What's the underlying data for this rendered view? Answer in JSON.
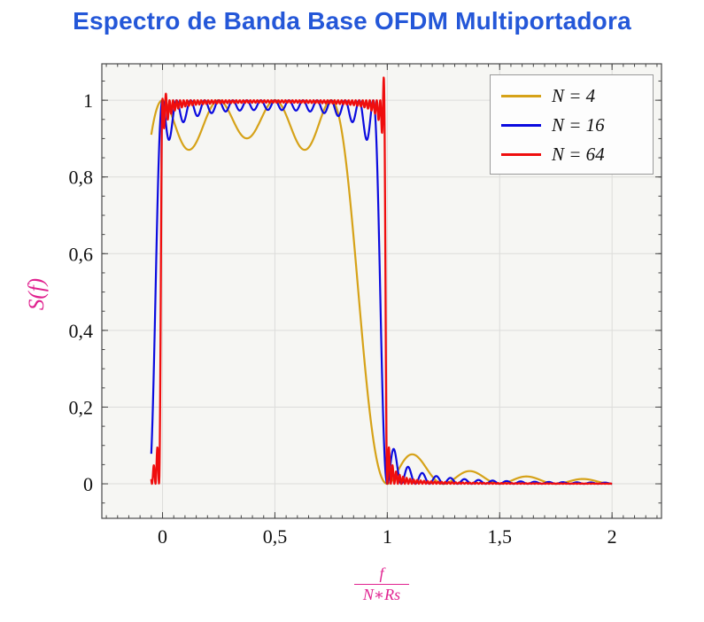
{
  "title": "Espectro de Banda Base OFDM Multiportadora",
  "colors": {
    "title": "#2457d8",
    "axis_label": "#e0218f",
    "grid": "#dcdcda",
    "frame": "#4a4a4a",
    "tick": "#444444",
    "tick_text": "#111111",
    "plot_bg": "#f6f6f3",
    "legend_border": "#9a9a9a"
  },
  "labels": {
    "ylabel_display": "S(f)",
    "frac_num": "f",
    "frac_den": "N∗Rs"
  },
  "chart_data": {
    "type": "line",
    "title": "Espectro de Banda Base OFDM Multiportadora",
    "xlabel": "f/(N*Rs)",
    "ylabel": "S(f)",
    "xlim": [
      -0.27,
      2.22
    ],
    "ylim": [
      -0.09,
      1.095
    ],
    "x_ticks": {
      "values": [
        0,
        0.5,
        1,
        1.5,
        2
      ],
      "labels": [
        "0",
        "0,5",
        "1",
        "1,5",
        "2"
      ]
    },
    "y_ticks": {
      "values": [
        0,
        0.2,
        0.4,
        0.6,
        0.8,
        1
      ],
      "labels": [
        "0",
        "0,2",
        "0,4",
        "0,6",
        "0,8",
        "1"
      ]
    },
    "minor_tick_step": {
      "x": 0.05,
      "y": 0.05
    },
    "grid": true,
    "legend_position": "top-right",
    "formula": "S(x) = sum_{k=0}^{N-1} sinc^2(N*x - k), with x = f/(N*Rs); band flat near 1 for 0<x<1, zero at x=1, sidelobes beyond",
    "x_range": [
      -0.05,
      2.0
    ],
    "sample_step": 0.001,
    "series": [
      {
        "label": "N = 4",
        "N": 4,
        "color": "#d6a218",
        "width": 2.2
      },
      {
        "label": "N = 16",
        "N": 16,
        "color": "#0b0bdf",
        "width": 2.2
      },
      {
        "label": "N = 64",
        "N": 64,
        "color": "#ef0e0e",
        "width": 2.3,
        "overshoots": [
          {
            "x": 0.984,
            "amp": 0.06,
            "sigma": 0.004
          },
          {
            "x": 0.01,
            "amp": 0.03,
            "sigma": 0.005
          }
        ]
      }
    ]
  }
}
